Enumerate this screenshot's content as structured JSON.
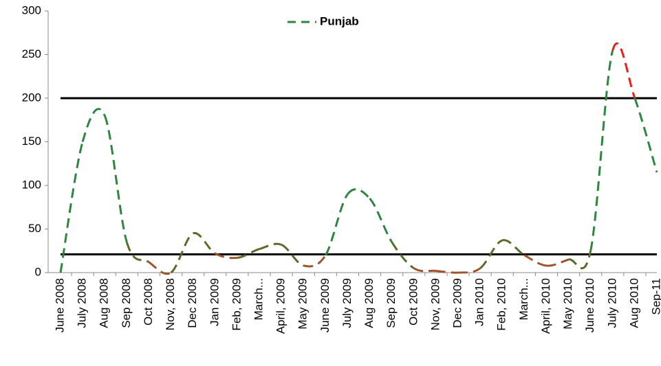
{
  "chart_data": {
    "type": "line",
    "categories": [
      "June 2008",
      "July 2008",
      "Aug 2008",
      "Sep 2008",
      "Oct 2008",
      "Nov, 2008",
      "Dec 2008",
      "Jan 2009",
      "Feb, 2009",
      "March...",
      "April, 2009",
      "May 2009",
      "June 2009",
      "July 2009",
      "Aug 2009",
      "Sep 2009",
      "Oct 2009",
      "Nov, 2009",
      "Dec 2009",
      "Jan 2010",
      "Feb, 2010",
      "March...",
      "April, 2010",
      "May 2010",
      "June 2010",
      "July 2010",
      "Aug 2010",
      "Sep-11"
    ],
    "series": [
      {
        "name": "Punjab",
        "color": "#2e8540",
        "values": [
          0,
          150,
          180,
          35,
          12,
          0,
          45,
          22,
          17,
          27,
          32,
          8,
          20,
          90,
          85,
          35,
          5,
          2,
          0,
          5,
          37,
          20,
          8,
          15,
          25,
          255,
          200,
          115
        ]
      }
    ],
    "color_scale": [
      [
        0,
        "#a0522d"
      ],
      [
        20,
        "#5a6b2a"
      ],
      [
        50,
        "#2e8540"
      ],
      [
        175,
        "#c5d82e"
      ],
      [
        215,
        "#e8201c"
      ]
    ],
    "reference_lines": [
      200,
      21
    ],
    "ylim": [
      0,
      300
    ],
    "yticks": [
      0,
      50,
      100,
      150,
      200,
      250,
      300
    ],
    "legend": "top"
  }
}
